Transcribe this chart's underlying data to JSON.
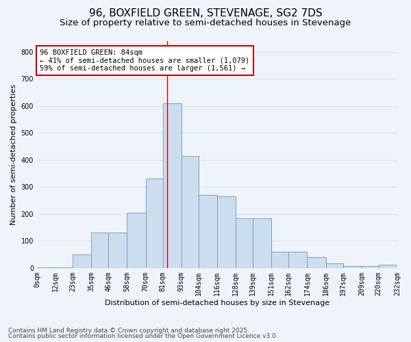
{
  "title": "96, BOXFIELD GREEN, STEVENAGE, SG2 7DS",
  "subtitle": "Size of property relative to semi-detached houses in Stevenage",
  "xlabel": "Distribution of semi-detached houses by size in Stevenage",
  "ylabel": "Number of semi-detached properties",
  "footer_line1": "Contains HM Land Registry data © Crown copyright and database right 2025.",
  "footer_line2": "Contains public sector information licensed under the Open Government Licence v3.0.",
  "annotation_title": "96 BOXFIELD GREEN: 84sqm",
  "annotation_line1": "← 41% of semi-detached houses are smaller (1,079)",
  "annotation_line2": "59% of semi-detached houses are larger (1,561) →",
  "property_size": 84,
  "bin_edges": [
    0,
    12,
    23,
    35,
    46,
    58,
    70,
    81,
    93,
    104,
    116,
    128,
    139,
    151,
    162,
    174,
    186,
    197,
    209,
    220,
    232
  ],
  "bar_heights": [
    2,
    3,
    50,
    130,
    130,
    205,
    330,
    610,
    415,
    270,
    265,
    185,
    185,
    60,
    60,
    40,
    18,
    8,
    8,
    13
  ],
  "bar_color": "#ccddef",
  "bar_edge_color": "#6699bb",
  "vline_color": "#cc0000",
  "bg_color": "#eef4f9",
  "annotation_box_color": "#ffffff",
  "annotation_box_edge": "#cc0000",
  "ylim": [
    0,
    840
  ],
  "yticks": [
    0,
    100,
    200,
    300,
    400,
    500,
    600,
    700,
    800
  ],
  "tick_labels": [
    "0sqm",
    "12sqm",
    "23sqm",
    "35sqm",
    "46sqm",
    "58sqm",
    "70sqm",
    "81sqm",
    "93sqm",
    "104sqm",
    "116sqm",
    "128sqm",
    "139sqm",
    "151sqm",
    "162sqm",
    "174sqm",
    "186sqm",
    "197sqm",
    "209sqm",
    "220sqm",
    "232sqm"
  ],
  "grid_color": "#d8e4f0",
  "title_fontsize": 11,
  "subtitle_fontsize": 9.5,
  "axis_label_fontsize": 8,
  "tick_fontsize": 7,
  "annotation_fontsize": 7.5,
  "footer_fontsize": 6.5
}
